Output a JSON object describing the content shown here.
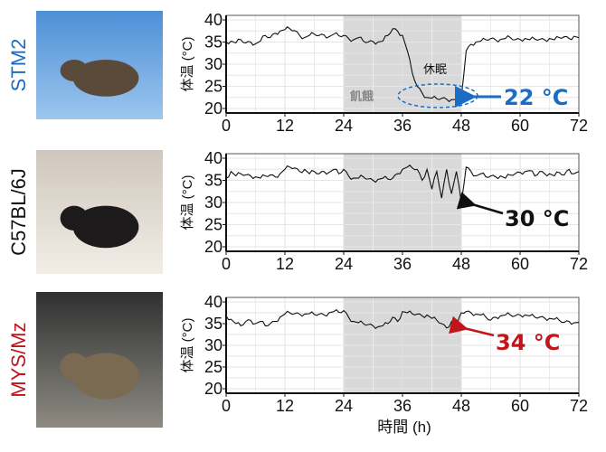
{
  "colors": {
    "blue": "#1a6cc4",
    "red": "#c0161b",
    "black": "#111111",
    "shade": "#d9d9d9",
    "line": "#111111"
  },
  "xlabel": "時間 (h)",
  "chart_data": [
    {
      "type": "line",
      "strain": "STM2",
      "strain_color": "#1a6cc4",
      "photo_icon": "mouse-photo",
      "ylabel": "体温 (°C)",
      "xlim": [
        0,
        72
      ],
      "ylim": [
        20,
        40
      ],
      "xticks": [
        "0",
        "12",
        "24",
        "36",
        "48",
        "60",
        "72"
      ],
      "yticks": [
        "20",
        "25",
        "30",
        "35",
        "40"
      ],
      "grid": true,
      "shaded_interval": [
        24,
        48
      ],
      "shaded_label": "飢餓",
      "state_label": "休眠",
      "annotation": {
        "text": "22 °C",
        "color": "#1a6cc4",
        "x": 47,
        "y": 22
      },
      "x_step_h": 1,
      "values": [
        35,
        35.2,
        34.8,
        35.5,
        34.8,
        35,
        34.6,
        35.2,
        36.5,
        36,
        37,
        37.5,
        37.8,
        38,
        37.6,
        36.5,
        36,
        36.5,
        36.8,
        36.5,
        36.6,
        36.2,
        36.8,
        36.4,
        36.5,
        35.8,
        35.5,
        36,
        35.2,
        35,
        35.1,
        35,
        35.2,
        36.5,
        38,
        37.5,
        36.5,
        33,
        28,
        25,
        23.5,
        22.5,
        22.3,
        22.2,
        22.3,
        22.1,
        22,
        22,
        22.5,
        33,
        34.5,
        35,
        35.2,
        35.5,
        35.8,
        35.5,
        35.6,
        35.8,
        36,
        35.5,
        35.6,
        35.8,
        35.5,
        35.7,
        35.6,
        35.5,
        35.8,
        35.5,
        36,
        36.2,
        35.8,
        36.3,
        36
      ]
    },
    {
      "type": "line",
      "strain": "C57BL/6J",
      "strain_color": "#111111",
      "photo_icon": "mouse-photo",
      "ylabel": "体温 (°C)",
      "xlim": [
        0,
        72
      ],
      "ylim": [
        20,
        40
      ],
      "xticks": [
        "0",
        "12",
        "24",
        "36",
        "48",
        "60",
        "72"
      ],
      "yticks": [
        "20",
        "25",
        "30",
        "35",
        "40"
      ],
      "grid": true,
      "shaded_interval": [
        24,
        48
      ],
      "annotation": {
        "text": "30 °C",
        "color": "#111111",
        "x": 48,
        "y": 30
      },
      "x_step_h": 1,
      "values": [
        35.5,
        37,
        36,
        36.5,
        36.2,
        36,
        35.8,
        35.5,
        36,
        36.2,
        35.8,
        36.5,
        37.5,
        38,
        37.8,
        37,
        37.5,
        36.5,
        37,
        36.5,
        37,
        36.8,
        37.5,
        36.5,
        37.5,
        36,
        35.5,
        35.5,
        35.8,
        35.3,
        35,
        35.2,
        35.5,
        35.3,
        35.5,
        36.5,
        37.5,
        38,
        37.8,
        37.5,
        35,
        37.5,
        33,
        37,
        31,
        37.5,
        32,
        37,
        30,
        38,
        37,
        36,
        36.5,
        35.8,
        36,
        35.8,
        36,
        35.5,
        36.2,
        36.5,
        36.8,
        37,
        37.2,
        36,
        37,
        36.5,
        36.5,
        36,
        36.8,
        36.2,
        37.5,
        36.5,
        37
      ]
    },
    {
      "type": "line",
      "strain": "MYS/Mz",
      "strain_color": "#c0161b",
      "photo_icon": "mouse-photo",
      "ylabel": "体温 (°C)",
      "xlim": [
        0,
        72
      ],
      "ylim": [
        20,
        40
      ],
      "xticks": [
        "0",
        "12",
        "24",
        "36",
        "48",
        "60",
        "72"
      ],
      "yticks": [
        "20",
        "25",
        "30",
        "35",
        "40"
      ],
      "grid": true,
      "shaded_interval": [
        24,
        48
      ],
      "annotation": {
        "text": "34 °C",
        "color": "#c0161b",
        "x": 47,
        "y": 34
      },
      "x_step_h": 1,
      "values": [
        36.8,
        36,
        35,
        34.5,
        35.5,
        35.8,
        35,
        35.5,
        34.5,
        35,
        35.5,
        36.5,
        37.2,
        37.5,
        37.3,
        37.2,
        37.2,
        37.3,
        37.1,
        37.2,
        37,
        37.5,
        37.8,
        37.6,
        38,
        36.5,
        35.5,
        35.2,
        35,
        34.8,
        34.5,
        34.3,
        34.5,
        35,
        36.5,
        35.5,
        37.8,
        37.5,
        37.3,
        37.2,
        36.8,
        37,
        36.2,
        35.8,
        35,
        34,
        35.5,
        34,
        37.5,
        37.8,
        37.5,
        37.2,
        37,
        36.5,
        35.8,
        36.5,
        36.8,
        37,
        37,
        36.8,
        37,
        37,
        36.8,
        36.5,
        36.5,
        36.3,
        36.2,
        36,
        35.8,
        35.3,
        35.5,
        35.2,
        35.3
      ]
    }
  ]
}
